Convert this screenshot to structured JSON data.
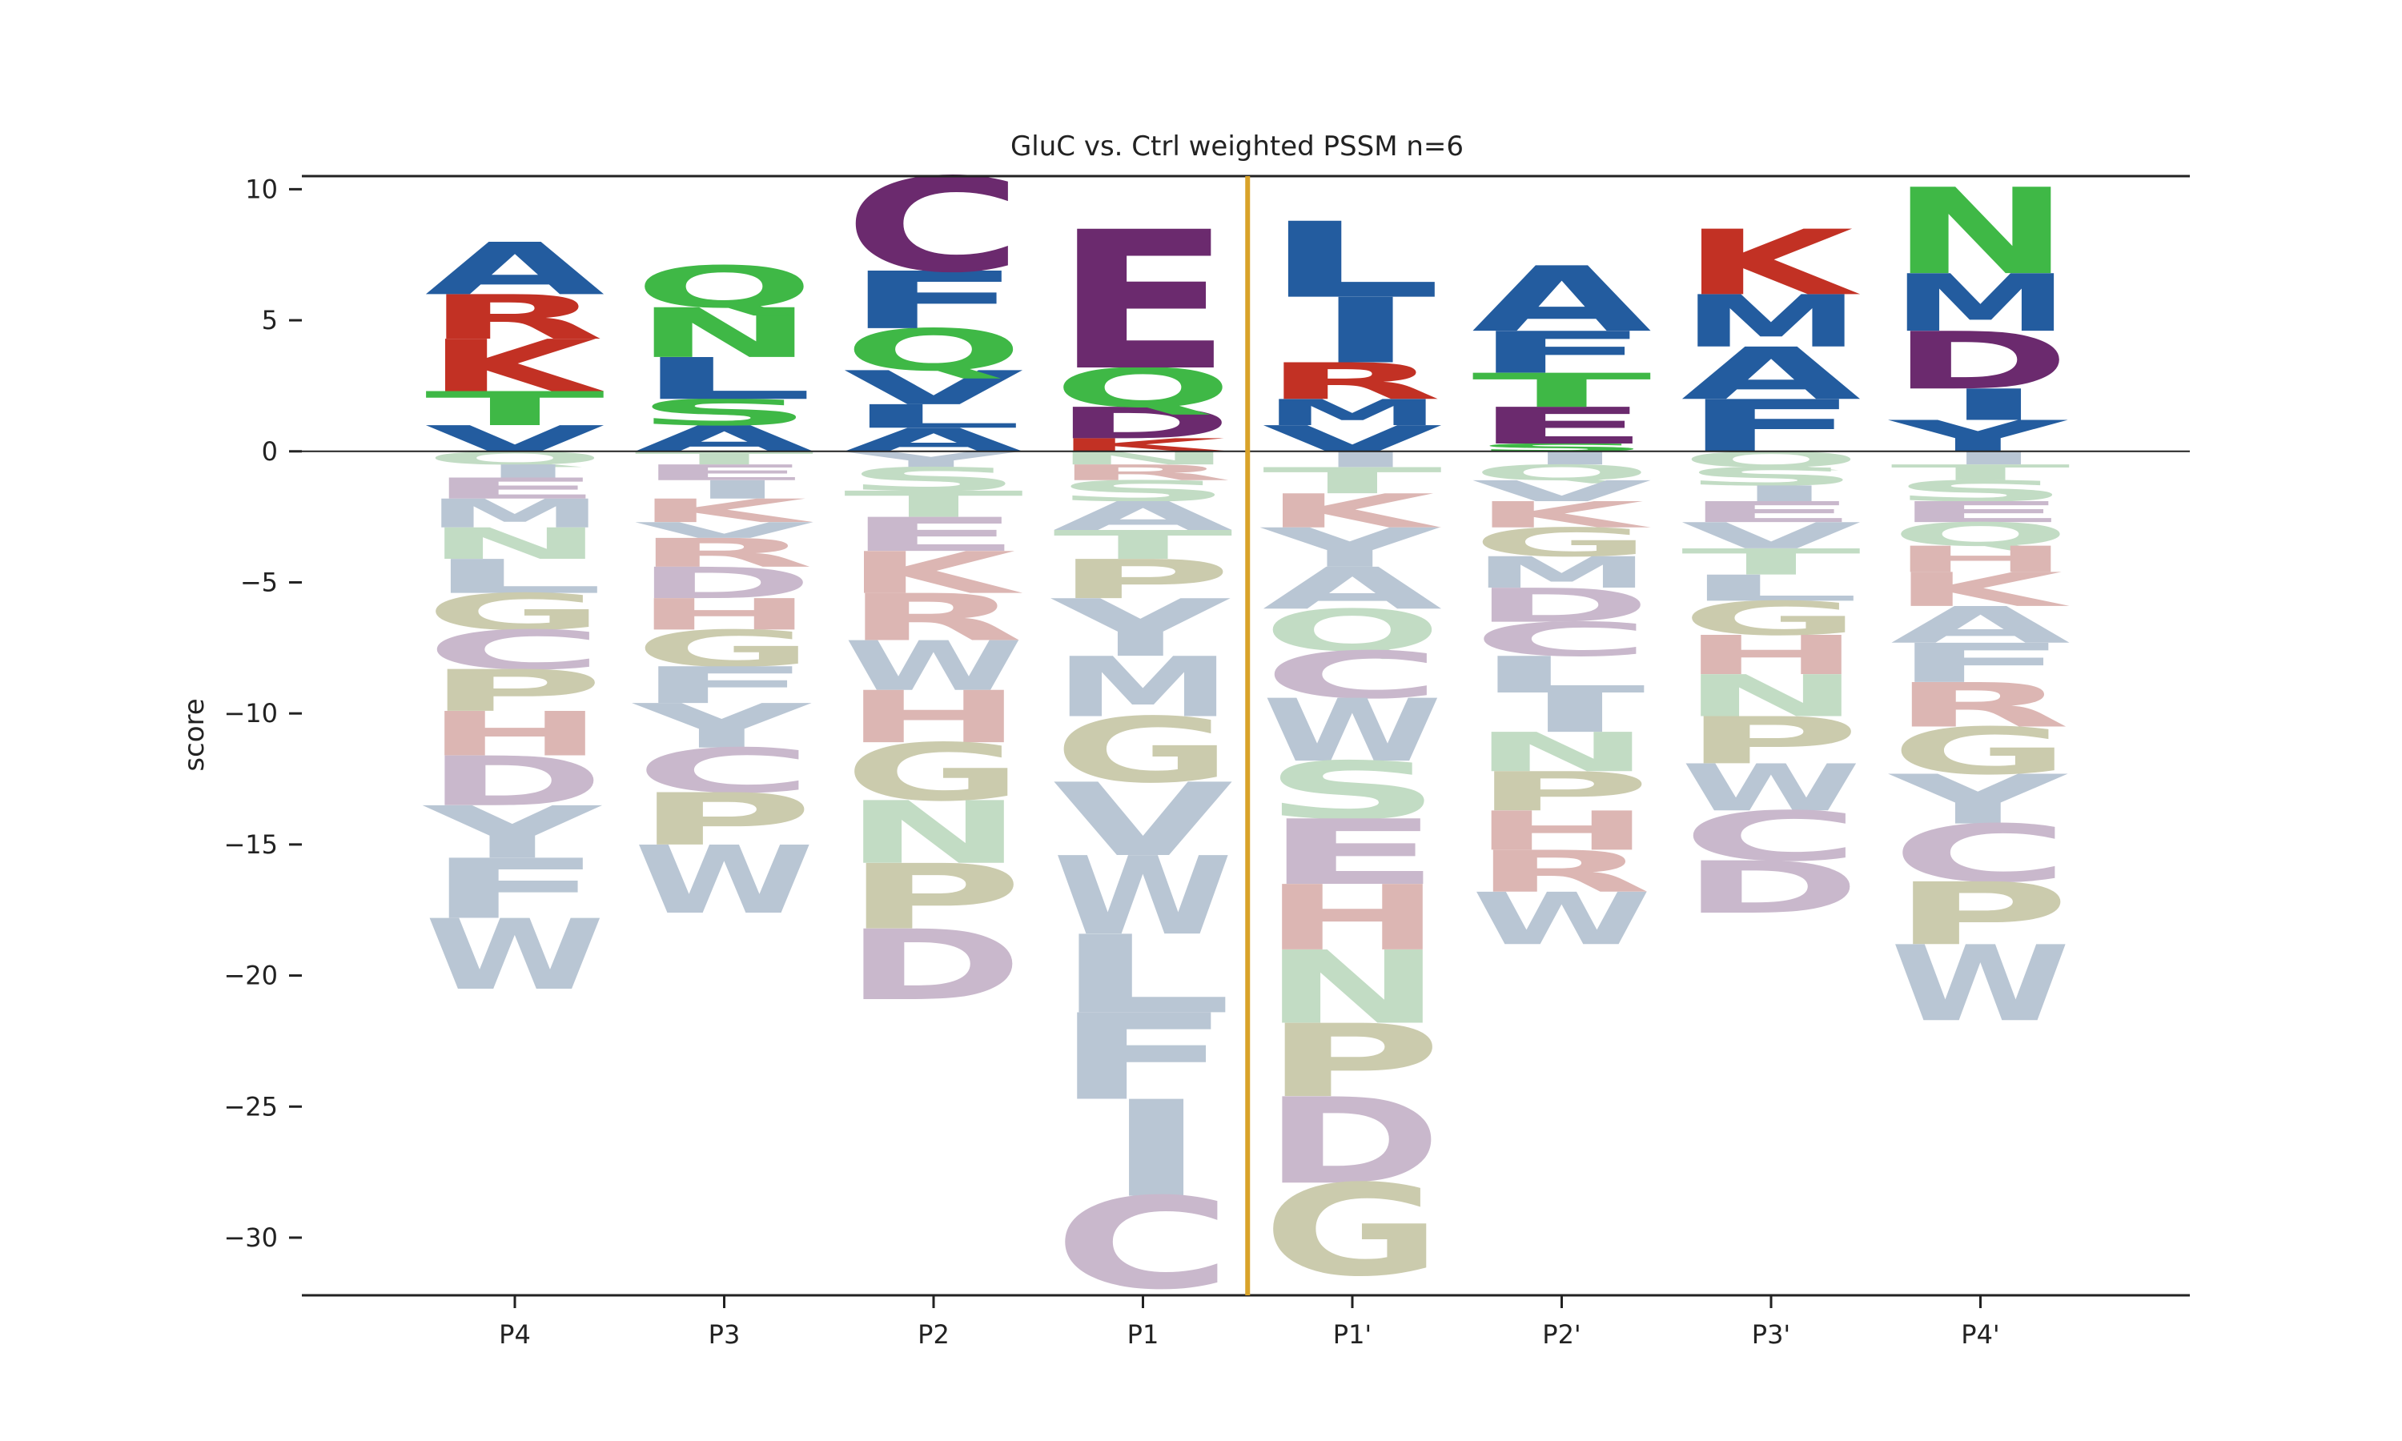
{
  "chart_data": {
    "type": "sequence-logo",
    "title": "GluC vs. Ctrl weighted PSSM n=6",
    "xlabel": "",
    "ylabel": "score",
    "ylim": [
      -32.2,
      10.5
    ],
    "yticks": [
      10,
      5,
      0,
      -5,
      -10,
      -15,
      -20,
      -25,
      -30
    ],
    "ytick_labels": [
      "10",
      "5",
      "0",
      "−5",
      "−10",
      "−15",
      "−20",
      "−25",
      "−30"
    ],
    "cleavage_marker_color": "#d9a32a",
    "colors": {
      "acidic": "#6b2a6e",
      "basic": "#c23124",
      "hydrophobic": "#235c9f",
      "polar": "#3fb846",
      "other": "#c2c6a3"
    },
    "positions": [
      {
        "label": "P4",
        "positive": [
          {
            "letter": "V",
            "value": 1.0
          },
          {
            "letter": "T",
            "value": 1.3
          },
          {
            "letter": "K",
            "value": 2.0
          },
          {
            "letter": "R",
            "value": 1.7
          },
          {
            "letter": "A",
            "value": 2.0
          }
        ],
        "negative": [
          {
            "letter": "Q",
            "value": 0.5
          },
          {
            "letter": "I",
            "value": 0.5
          },
          {
            "letter": "E",
            "value": 0.8
          },
          {
            "letter": "M",
            "value": 1.1
          },
          {
            "letter": "N",
            "value": 1.2
          },
          {
            "letter": "L",
            "value": 1.3
          },
          {
            "letter": "G",
            "value": 1.4
          },
          {
            "letter": "C",
            "value": 1.5
          },
          {
            "letter": "P",
            "value": 1.6
          },
          {
            "letter": "H",
            "value": 1.7
          },
          {
            "letter": "D",
            "value": 1.9
          },
          {
            "letter": "Y",
            "value": 2.0
          },
          {
            "letter": "F",
            "value": 2.3
          },
          {
            "letter": "W",
            "value": 2.7
          }
        ]
      },
      {
        "label": "P3",
        "positive": [
          {
            "letter": "A",
            "value": 1.0
          },
          {
            "letter": "S",
            "value": 1.0
          },
          {
            "letter": "L",
            "value": 1.6
          },
          {
            "letter": "N",
            "value": 1.9
          },
          {
            "letter": "Q",
            "value": 1.6
          }
        ],
        "negative": [
          {
            "letter": "T",
            "value": 0.5
          },
          {
            "letter": "E",
            "value": 0.6
          },
          {
            "letter": "I",
            "value": 0.7
          },
          {
            "letter": "K",
            "value": 0.9
          },
          {
            "letter": "V",
            "value": 0.6
          },
          {
            "letter": "R",
            "value": 1.1
          },
          {
            "letter": "D",
            "value": 1.2
          },
          {
            "letter": "H",
            "value": 1.2
          },
          {
            "letter": "G",
            "value": 1.4
          },
          {
            "letter": "F",
            "value": 1.4
          },
          {
            "letter": "Y",
            "value": 1.7
          },
          {
            "letter": "C",
            "value": 1.7
          },
          {
            "letter": "P",
            "value": 2.0
          },
          {
            "letter": "W",
            "value": 2.6
          }
        ]
      },
      {
        "label": "P2",
        "positive": [
          {
            "letter": "A",
            "value": 0.9
          },
          {
            "letter": "L",
            "value": 0.9
          },
          {
            "letter": "V",
            "value": 1.3
          },
          {
            "letter": "Q",
            "value": 1.6
          },
          {
            "letter": "F",
            "value": 2.2
          },
          {
            "letter": "C",
            "value": 3.6
          }
        ],
        "negative": [
          {
            "letter": "Y",
            "value": 0.6
          },
          {
            "letter": "S",
            "value": 0.9
          },
          {
            "letter": "T",
            "value": 1.0
          },
          {
            "letter": "E",
            "value": 1.3
          },
          {
            "letter": "K",
            "value": 1.6
          },
          {
            "letter": "R",
            "value": 1.8
          },
          {
            "letter": "W",
            "value": 1.9
          },
          {
            "letter": "H",
            "value": 2.0
          },
          {
            "letter": "G",
            "value": 2.2
          },
          {
            "letter": "N",
            "value": 2.4
          },
          {
            "letter": "P",
            "value": 2.5
          },
          {
            "letter": "D",
            "value": 2.7
          }
        ]
      },
      {
        "label": "P1",
        "positive": [
          {
            "letter": "K",
            "value": 0.5
          },
          {
            "letter": "D",
            "value": 1.2
          },
          {
            "letter": "Q",
            "value": 1.5
          },
          {
            "letter": "E",
            "value": 5.3
          }
        ],
        "negative": [
          {
            "letter": "N",
            "value": 0.5
          },
          {
            "letter": "R",
            "value": 0.6
          },
          {
            "letter": "S",
            "value": 0.8
          },
          {
            "letter": "A",
            "value": 1.1
          },
          {
            "letter": "T",
            "value": 1.1
          },
          {
            "letter": "P",
            "value": 1.5
          },
          {
            "letter": "Y",
            "value": 2.2
          },
          {
            "letter": "M",
            "value": 2.3
          },
          {
            "letter": "G",
            "value": 2.5
          },
          {
            "letter": "V",
            "value": 2.8
          },
          {
            "letter": "W",
            "value": 3.0
          },
          {
            "letter": "L",
            "value": 3.0
          },
          {
            "letter": "F",
            "value": 3.3
          },
          {
            "letter": "I",
            "value": 3.7
          },
          {
            "letter": "C",
            "value": 3.5
          }
        ]
      },
      {
        "label": "P1'",
        "positive": [
          {
            "letter": "V",
            "value": 1.0
          },
          {
            "letter": "M",
            "value": 1.0
          },
          {
            "letter": "R",
            "value": 1.4
          },
          {
            "letter": "I",
            "value": 2.5
          },
          {
            "letter": "L",
            "value": 2.9
          }
        ],
        "negative": [
          {
            "letter": "I",
            "value": 0.6
          },
          {
            "letter": "T",
            "value": 1.0
          },
          {
            "letter": "K",
            "value": 1.3
          },
          {
            "letter": "Y",
            "value": 1.5
          },
          {
            "letter": "A",
            "value": 1.6
          },
          {
            "letter": "Q",
            "value": 1.6
          },
          {
            "letter": "C",
            "value": 1.8
          },
          {
            "letter": "W",
            "value": 2.4
          },
          {
            "letter": "S",
            "value": 2.2
          },
          {
            "letter": "E",
            "value": 2.5
          },
          {
            "letter": "H",
            "value": 2.5
          },
          {
            "letter": "N",
            "value": 2.8
          },
          {
            "letter": "P",
            "value": 2.8
          },
          {
            "letter": "D",
            "value": 3.3
          },
          {
            "letter": "G",
            "value": 3.5
          }
        ]
      },
      {
        "label": "P2'",
        "positive": [
          {
            "letter": "S",
            "value": 0.3
          },
          {
            "letter": "E",
            "value": 1.4
          },
          {
            "letter": "T",
            "value": 1.3
          },
          {
            "letter": "F",
            "value": 1.6
          },
          {
            "letter": "A",
            "value": 2.5
          }
        ],
        "negative": [
          {
            "letter": "I",
            "value": 0.5
          },
          {
            "letter": "Q",
            "value": 0.6
          },
          {
            "letter": "V",
            "value": 0.8
          },
          {
            "letter": "K",
            "value": 1.0
          },
          {
            "letter": "G",
            "value": 1.1
          },
          {
            "letter": "M",
            "value": 1.2
          },
          {
            "letter": "D",
            "value": 1.3
          },
          {
            "letter": "C",
            "value": 1.3
          },
          {
            "letter": "L",
            "value": 1.4
          },
          {
            "letter": "I",
            "value": 1.5
          },
          {
            "letter": "N",
            "value": 1.5
          },
          {
            "letter": "P",
            "value": 1.5
          },
          {
            "letter": "H",
            "value": 1.5
          },
          {
            "letter": "R",
            "value": 1.6
          },
          {
            "letter": "W",
            "value": 2.0
          }
        ]
      },
      {
        "label": "P3'",
        "positive": [
          {
            "letter": "F",
            "value": 2.0
          },
          {
            "letter": "A",
            "value": 2.0
          },
          {
            "letter": "M",
            "value": 2.0
          },
          {
            "letter": "K",
            "value": 2.5
          }
        ],
        "negative": [
          {
            "letter": "Q",
            "value": 0.6
          },
          {
            "letter": "S",
            "value": 0.7
          },
          {
            "letter": "I",
            "value": 0.6
          },
          {
            "letter": "E",
            "value": 0.8
          },
          {
            "letter": "V",
            "value": 1.0
          },
          {
            "letter": "T",
            "value": 1.0
          },
          {
            "letter": "L",
            "value": 1.0
          },
          {
            "letter": "G",
            "value": 1.3
          },
          {
            "letter": "H",
            "value": 1.5
          },
          {
            "letter": "N",
            "value": 1.6
          },
          {
            "letter": "P",
            "value": 1.8
          },
          {
            "letter": "W",
            "value": 1.8
          },
          {
            "letter": "C",
            "value": 1.9
          },
          {
            "letter": "D",
            "value": 2.0
          }
        ]
      },
      {
        "label": "P4'",
        "positive": [
          {
            "letter": "Y",
            "value": 1.2
          },
          {
            "letter": "I",
            "value": 1.2
          },
          {
            "letter": "D",
            "value": 2.2
          },
          {
            "letter": "M",
            "value": 2.2
          },
          {
            "letter": "N",
            "value": 3.3
          }
        ],
        "negative": [
          {
            "letter": "I",
            "value": 0.5
          },
          {
            "letter": "T",
            "value": 0.6
          },
          {
            "letter": "S",
            "value": 0.8
          },
          {
            "letter": "E",
            "value": 0.8
          },
          {
            "letter": "Q",
            "value": 0.9
          },
          {
            "letter": "H",
            "value": 1.0
          },
          {
            "letter": "K",
            "value": 1.3
          },
          {
            "letter": "A",
            "value": 1.4
          },
          {
            "letter": "F",
            "value": 1.5
          },
          {
            "letter": "R",
            "value": 1.7
          },
          {
            "letter": "G",
            "value": 1.8
          },
          {
            "letter": "Y",
            "value": 1.9
          },
          {
            "letter": "C",
            "value": 2.2
          },
          {
            "letter": "P",
            "value": 2.4
          },
          {
            "letter": "W",
            "value": 2.9
          }
        ]
      }
    ]
  }
}
